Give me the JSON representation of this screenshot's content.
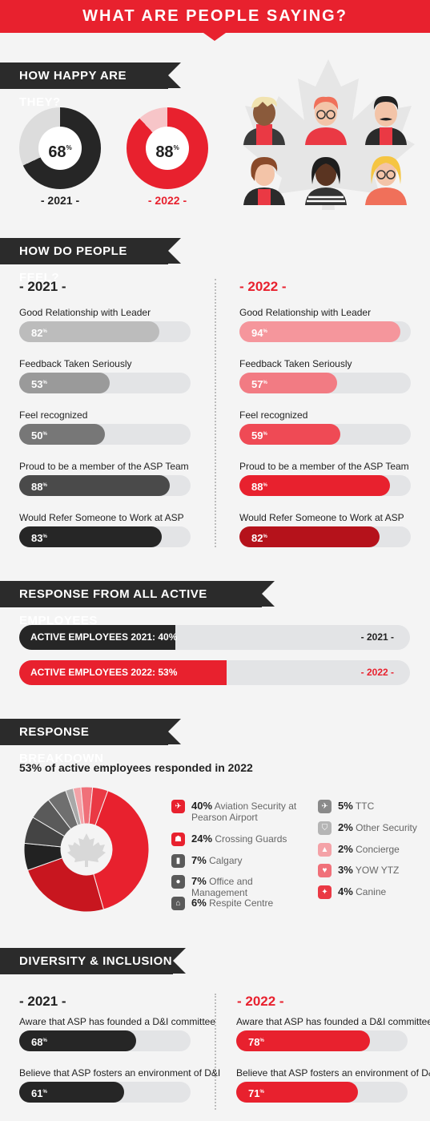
{
  "title": "WHAT ARE PEOPLE SAYING?",
  "happy": {
    "heading": "HOW HAPPY ARE THEY?",
    "y2021": {
      "value": "68",
      "pct": "%",
      "label": "- 2021 -",
      "fraction": 0.68
    },
    "y2022": {
      "value": "88",
      "pct": "%",
      "label": "- 2022 -",
      "fraction": 0.88
    }
  },
  "feel": {
    "heading": "HOW DO PEOPLE FEEL?",
    "left_year": "- 2021 -",
    "right_year": "- 2022 -",
    "left": [
      {
        "label": "Good Relationship with Leader",
        "value": "82",
        "pct": "%",
        "fraction": 0.82,
        "color": "#bcbcbc"
      },
      {
        "label": "Feedback Taken Seriously",
        "value": "53",
        "pct": "%",
        "fraction": 0.53,
        "color": "#9a9a9a"
      },
      {
        "label": "Feel recognized",
        "value": "50",
        "pct": "%",
        "fraction": 0.5,
        "color": "#777777"
      },
      {
        "label": "Proud to be a member of the ASP Team",
        "value": "88",
        "pct": "%",
        "fraction": 0.88,
        "color": "#4a4a4a"
      },
      {
        "label": "Would Refer Someone to Work at ASP",
        "value": "83",
        "pct": "%",
        "fraction": 0.83,
        "color": "#262626"
      }
    ],
    "right": [
      {
        "label": "Good Relationship with Leader",
        "value": "94",
        "pct": "%",
        "fraction": 0.94,
        "color": "#f5969c"
      },
      {
        "label": "Feedback Taken Seriously",
        "value": "57",
        "pct": "%",
        "fraction": 0.57,
        "color": "#f27b83"
      },
      {
        "label": "Feel recognized",
        "value": "59",
        "pct": "%",
        "fraction": 0.59,
        "color": "#ef4a55"
      },
      {
        "label": "Proud to be a member of the ASP Team",
        "value": "88",
        "pct": "%",
        "fraction": 0.88,
        "color": "#e8212e"
      },
      {
        "label": "Would Refer Someone to Work at ASP",
        "value": "82",
        "pct": "%",
        "fraction": 0.82,
        "color": "#b5121b"
      }
    ]
  },
  "active": {
    "heading": "RESPONSE FROM ALL ACTIVE EMPLOYEES",
    "bars": [
      {
        "label": "ACTIVE EMPLOYEES 2021: 40%",
        "year": "- 2021 -",
        "fraction": 0.4,
        "color": "#262626",
        "year_color": "#222222"
      },
      {
        "label": "ACTIVE EMPLOYEES 2022: 53%",
        "year": "- 2022 -",
        "fraction": 0.53,
        "color": "#e8212e",
        "year_color": "#e8212e"
      }
    ]
  },
  "breakdown": {
    "heading": "RESPONSE BREAKDOWN",
    "subtitle": "53% of active employees responded in 2022",
    "segments": [
      {
        "pct": "40%",
        "name": "Aviation Security at Pearson Airport",
        "value": 40,
        "color": "#e8212e",
        "icon": "airport-security-icon"
      },
      {
        "pct": "24%",
        "name": "Crossing Guards",
        "value": 24,
        "color": "#c8161f",
        "icon": "crossing-guard-icon"
      },
      {
        "pct": "7%",
        "name": "Calgary",
        "value": 7,
        "color": "#222222",
        "icon": "alberta-map-icon"
      },
      {
        "pct": "7%",
        "name": "Office and Management",
        "value": 7,
        "color": "#444444",
        "icon": "office-manager-icon"
      },
      {
        "pct": "6%",
        "name": "Respite Centre",
        "value": 6,
        "color": "#5a5a5a",
        "icon": "house-icon"
      },
      {
        "pct": "5%",
        "name": "TTC",
        "value": 5,
        "color": "#6f6f6f",
        "icon": "airplane-icon"
      },
      {
        "pct": "2%",
        "name": "Other Security",
        "value": 2,
        "color": "#a8a8a8",
        "icon": "shield-icon"
      },
      {
        "pct": "2%",
        "name": "Concierge",
        "value": 2,
        "color": "#f4a2a7",
        "icon": "concierge-icon"
      },
      {
        "pct": "3%",
        "name": "YOW YTZ",
        "value": 3,
        "color": "#f07079",
        "icon": "heart-icon"
      },
      {
        "pct": "4%",
        "name": "Canine",
        "value": 4,
        "color": "#ea3944",
        "icon": "paw-icon"
      }
    ]
  },
  "diversity": {
    "heading": "DIVERSITY & INCLUSION",
    "left_year": "- 2021 -",
    "right_year": "- 2022 -",
    "left": [
      {
        "label": "Aware that ASP has founded a D&I committee",
        "value": "68",
        "pct": "%",
        "fraction": 0.68,
        "color": "#262626"
      },
      {
        "label": "Believe that ASP fosters an environment of D&I",
        "value": "61",
        "pct": "%",
        "fraction": 0.61,
        "color": "#262626"
      }
    ],
    "right": [
      {
        "label": "Aware that ASP has founded a D&I committee",
        "value": "78",
        "pct": "%",
        "fraction": 0.78,
        "color": "#e8212e"
      },
      {
        "label": "Believe that ASP fosters an environment of D&I",
        "value": "71",
        "pct": "%",
        "fraction": 0.71,
        "color": "#e8212e"
      }
    ]
  }
}
